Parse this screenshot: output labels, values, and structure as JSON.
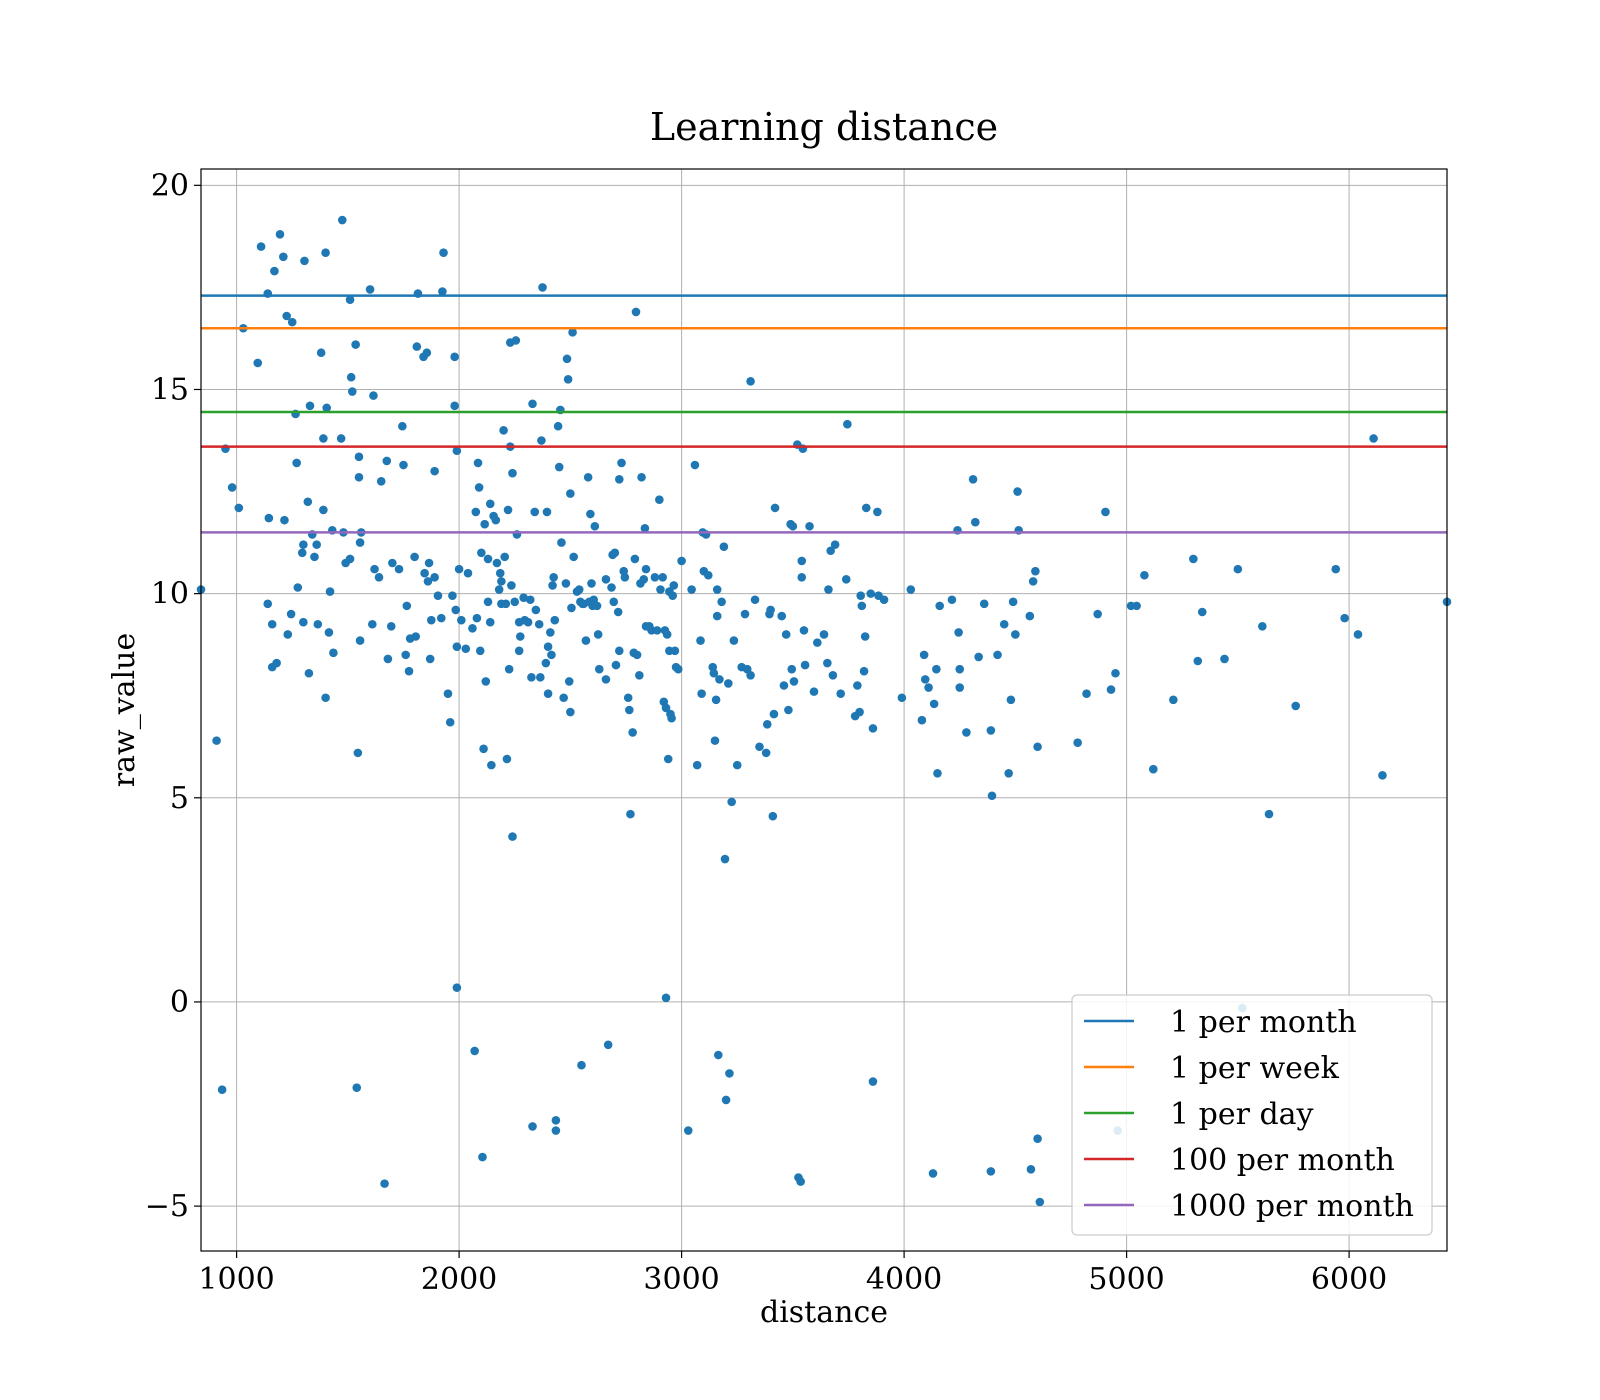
{
  "chart_data": {
    "type": "scatter",
    "title": "Learning distance",
    "xlabel": "distance",
    "ylabel": "raw_value",
    "xlim": [
      840,
      6440
    ],
    "ylim": [
      -6.1,
      20.4
    ],
    "xticks": [
      1000,
      2000,
      3000,
      4000,
      5000,
      6000
    ],
    "yticks": [
      -5,
      0,
      5,
      10,
      15,
      20
    ],
    "ytick_labels": [
      "−5",
      "0",
      "5",
      "10",
      "15",
      "20"
    ],
    "grid": true,
    "legend_position": "lower-right",
    "point_color": "#1f77b4",
    "hlines": [
      {
        "name": "1 per month",
        "y": 17.3,
        "color": "#1f77b4"
      },
      {
        "name": "1 per week",
        "y": 16.5,
        "color": "#ff7f0e"
      },
      {
        "name": "1 per day",
        "y": 14.45,
        "color": "#2ca02c"
      },
      {
        "name": "100 per month",
        "y": 13.6,
        "color": "#d62728"
      },
      {
        "name": "1000 per month",
        "y": 11.5,
        "color": "#9467bd"
      }
    ],
    "points": [
      [
        840,
        10.1
      ],
      [
        910,
        6.4
      ],
      [
        935,
        -2.15
      ],
      [
        950,
        13.55
      ],
      [
        980,
        12.6
      ],
      [
        1010,
        12.1
      ],
      [
        1030,
        16.5
      ],
      [
        1095,
        15.65
      ],
      [
        1110,
        18.5
      ],
      [
        1140,
        17.35
      ],
      [
        1145,
        11.85
      ],
      [
        1140,
        9.75
      ],
      [
        1160,
        9.25
      ],
      [
        1160,
        8.2
      ],
      [
        1170,
        17.9
      ],
      [
        1180,
        8.3
      ],
      [
        1195,
        18.8
      ],
      [
        1210,
        18.25
      ],
      [
        1215,
        11.8
      ],
      [
        1225,
        16.8
      ],
      [
        1230,
        9.0
      ],
      [
        1245,
        9.5
      ],
      [
        1250,
        16.65
      ],
      [
        1265,
        14.4
      ],
      [
        1270,
        13.2
      ],
      [
        1275,
        10.15
      ],
      [
        1295,
        11.0
      ],
      [
        1300,
        11.2
      ],
      [
        1300,
        9.3
      ],
      [
        1305,
        18.15
      ],
      [
        1320,
        12.25
      ],
      [
        1325,
        8.05
      ],
      [
        1330,
        14.6
      ],
      [
        1340,
        11.45
      ],
      [
        1350,
        10.9
      ],
      [
        1360,
        11.2
      ],
      [
        1365,
        9.25
      ],
      [
        1380,
        15.9
      ],
      [
        1390,
        12.05
      ],
      [
        1390,
        13.8
      ],
      [
        1400,
        18.35
      ],
      [
        1400,
        7.45
      ],
      [
        1405,
        14.55
      ],
      [
        1415,
        9.05
      ],
      [
        1420,
        10.05
      ],
      [
        1430,
        11.55
      ],
      [
        1435,
        8.55
      ],
      [
        1470,
        13.8
      ],
      [
        1475,
        19.15
      ],
      [
        1480,
        11.5
      ],
      [
        1490,
        10.75
      ],
      [
        1510,
        10.85
      ],
      [
        1510,
        17.2
      ],
      [
        1515,
        15.3
      ],
      [
        1520,
        14.95
      ],
      [
        1535,
        16.1
      ],
      [
        1540,
        -2.1
      ],
      [
        1545,
        6.1
      ],
      [
        1550,
        13.35
      ],
      [
        1550,
        12.85
      ],
      [
        1555,
        11.25
      ],
      [
        1555,
        8.85
      ],
      [
        1560,
        11.5
      ],
      [
        1600,
        17.45
      ],
      [
        1610,
        9.25
      ],
      [
        1615,
        14.85
      ],
      [
        1620,
        10.6
      ],
      [
        1640,
        10.4
      ],
      [
        1650,
        12.75
      ],
      [
        1665,
        -4.45
      ],
      [
        1675,
        13.25
      ],
      [
        1680,
        8.4
      ],
      [
        1695,
        9.2
      ],
      [
        1700,
        10.75
      ],
      [
        1730,
        10.6
      ],
      [
        1745,
        14.1
      ],
      [
        1750,
        13.15
      ],
      [
        1760,
        8.5
      ],
      [
        1765,
        9.7
      ],
      [
        1775,
        8.1
      ],
      [
        1780,
        8.9
      ],
      [
        1800,
        10.9
      ],
      [
        1805,
        8.95
      ],
      [
        1810,
        16.05
      ],
      [
        1815,
        17.35
      ],
      [
        1840,
        15.8
      ],
      [
        1845,
        10.5
      ],
      [
        1855,
        15.9
      ],
      [
        1860,
        10.3
      ],
      [
        1865,
        10.75
      ],
      [
        1870,
        8.4
      ],
      [
        1875,
        9.35
      ],
      [
        1890,
        13.0
      ],
      [
        1890,
        10.4
      ],
      [
        1905,
        9.95
      ],
      [
        1920,
        9.4
      ],
      [
        1925,
        17.4
      ],
      [
        1930,
        18.35
      ],
      [
        1950,
        7.55
      ],
      [
        1960,
        6.85
      ],
      [
        1970,
        9.95
      ],
      [
        1980,
        15.8
      ],
      [
        1980,
        14.6
      ],
      [
        1985,
        9.6
      ],
      [
        1990,
        13.5
      ],
      [
        1990,
        8.7
      ],
      [
        1990,
        0.35
      ],
      [
        2000,
        10.6
      ],
      [
        2010,
        9.35
      ],
      [
        2030,
        8.65
      ],
      [
        2040,
        10.5
      ],
      [
        2060,
        9.15
      ],
      [
        2070,
        -1.2
      ],
      [
        2075,
        12.0
      ],
      [
        2080,
        9.4
      ],
      [
        2085,
        13.2
      ],
      [
        2090,
        12.6
      ],
      [
        2095,
        8.6
      ],
      [
        2100,
        11.0
      ],
      [
        2105,
        -3.8
      ],
      [
        2110,
        6.2
      ],
      [
        2115,
        11.7
      ],
      [
        2120,
        7.85
      ],
      [
        2130,
        9.8
      ],
      [
        2130,
        10.85
      ],
      [
        2140,
        12.2
      ],
      [
        2140,
        9.3
      ],
      [
        2145,
        5.8
      ],
      [
        2155,
        11.9
      ],
      [
        2165,
        11.8
      ],
      [
        2170,
        10.75
      ],
      [
        2180,
        10.1
      ],
      [
        2185,
        10.5
      ],
      [
        2190,
        9.75
      ],
      [
        2190,
        10.3
      ],
      [
        2200,
        14.0
      ],
      [
        2205,
        10.9
      ],
      [
        2210,
        9.75
      ],
      [
        2215,
        5.95
      ],
      [
        2220,
        12.05
      ],
      [
        2225,
        8.15
      ],
      [
        2230,
        16.15
      ],
      [
        2230,
        13.6
      ],
      [
        2235,
        10.2
      ],
      [
        2240,
        4.05
      ],
      [
        2240,
        12.95
      ],
      [
        2250,
        9.8
      ],
      [
        2255,
        16.2
      ],
      [
        2260,
        11.45
      ],
      [
        2270,
        9.3
      ],
      [
        2270,
        8.6
      ],
      [
        2275,
        8.95
      ],
      [
        2290,
        9.9
      ],
      [
        2295,
        9.35
      ],
      [
        2310,
        9.3
      ],
      [
        2320,
        9.85
      ],
      [
        2325,
        7.95
      ],
      [
        2330,
        -3.05
      ],
      [
        2330,
        14.65
      ],
      [
        2340,
        12.0
      ],
      [
        2345,
        9.6
      ],
      [
        2360,
        9.25
      ],
      [
        2365,
        7.95
      ],
      [
        2370,
        13.75
      ],
      [
        2375,
        17.5
      ],
      [
        2390,
        8.3
      ],
      [
        2400,
        7.55
      ],
      [
        2395,
        12.0
      ],
      [
        2400,
        8.7
      ],
      [
        2410,
        9.05
      ],
      [
        2415,
        8.5
      ],
      [
        2420,
        10.2
      ],
      [
        2425,
        10.4
      ],
      [
        2430,
        9.35
      ],
      [
        2435,
        -2.9
      ],
      [
        2435,
        -3.15
      ],
      [
        2445,
        14.1
      ],
      [
        2450,
        13.1
      ],
      [
        2455,
        14.5
      ],
      [
        2460,
        11.25
      ],
      [
        2470,
        7.45
      ],
      [
        2480,
        10.25
      ],
      [
        2485,
        15.75
      ],
      [
        2490,
        15.25
      ],
      [
        2495,
        7.85
      ],
      [
        2500,
        7.1
      ],
      [
        2500,
        12.45
      ],
      [
        2505,
        9.65
      ],
      [
        2510,
        16.4
      ],
      [
        2515,
        10.9
      ],
      [
        2530,
        10.05
      ],
      [
        2540,
        10.1
      ],
      [
        2545,
        9.8
      ],
      [
        2550,
        -1.55
      ],
      [
        2555,
        9.75
      ],
      [
        2560,
        9.75
      ],
      [
        2570,
        8.85
      ],
      [
        2580,
        12.85
      ],
      [
        2585,
        9.8
      ],
      [
        2590,
        11.95
      ],
      [
        2595,
        10.25
      ],
      [
        2600,
        9.7
      ],
      [
        2605,
        9.85
      ],
      [
        2610,
        11.65
      ],
      [
        2620,
        9.7
      ],
      [
        2625,
        9.0
      ],
      [
        2630,
        8.15
      ],
      [
        2660,
        10.35
      ],
      [
        2660,
        7.9
      ],
      [
        2670,
        -1.05
      ],
      [
        2685,
        10.15
      ],
      [
        2690,
        10.95
      ],
      [
        2695,
        9.8
      ],
      [
        2700,
        11.0
      ],
      [
        2705,
        8.25
      ],
      [
        2715,
        9.55
      ],
      [
        2720,
        8.6
      ],
      [
        2720,
        12.8
      ],
      [
        2730,
        13.2
      ],
      [
        2740,
        10.55
      ],
      [
        2745,
        10.4
      ],
      [
        2760,
        7.45
      ],
      [
        2765,
        7.15
      ],
      [
        2770,
        4.6
      ],
      [
        2780,
        6.6
      ],
      [
        2785,
        8.55
      ],
      [
        2790,
        10.85
      ],
      [
        2795,
        16.9
      ],
      [
        2800,
        8.5
      ],
      [
        2810,
        8.0
      ],
      [
        2815,
        10.25
      ],
      [
        2820,
        12.85
      ],
      [
        2830,
        10.35
      ],
      [
        2835,
        11.6
      ],
      [
        2840,
        9.2
      ],
      [
        2840,
        10.6
      ],
      [
        2855,
        9.2
      ],
      [
        2865,
        9.1
      ],
      [
        2880,
        10.4
      ],
      [
        2890,
        9.1
      ],
      [
        2900,
        12.3
      ],
      [
        2905,
        10.1
      ],
      [
        2915,
        10.4
      ],
      [
        2920,
        7.35
      ],
      [
        2925,
        9.1
      ],
      [
        2930,
        0.1
      ],
      [
        2930,
        7.2
      ],
      [
        2935,
        9.0
      ],
      [
        2940,
        5.95
      ],
      [
        2945,
        8.6
      ],
      [
        2945,
        10.05
      ],
      [
        2950,
        7.05
      ],
      [
        2955,
        6.95
      ],
      [
        2960,
        9.95
      ],
      [
        2965,
        10.2
      ],
      [
        2970,
        8.6
      ],
      [
        2975,
        8.2
      ],
      [
        2985,
        8.15
      ],
      [
        3000,
        10.8
      ],
      [
        3030,
        -3.15
      ],
      [
        3045,
        10.1
      ],
      [
        3060,
        13.15
      ],
      [
        3070,
        5.8
      ],
      [
        3085,
        8.85
      ],
      [
        3090,
        7.55
      ],
      [
        3095,
        11.5
      ],
      [
        3100,
        10.55
      ],
      [
        3110,
        11.45
      ],
      [
        3120,
        10.45
      ],
      [
        3140,
        8.2
      ],
      [
        3145,
        8.05
      ],
      [
        3150,
        6.4
      ],
      [
        3155,
        7.4
      ],
      [
        3160,
        9.45
      ],
      [
        3160,
        10.1
      ],
      [
        3165,
        -1.3
      ],
      [
        3170,
        7.9
      ],
      [
        3180,
        9.8
      ],
      [
        3190,
        11.15
      ],
      [
        3195,
        3.5
      ],
      [
        3200,
        -2.4
      ],
      [
        3210,
        7.8
      ],
      [
        3215,
        -1.75
      ],
      [
        3225,
        4.9
      ],
      [
        3235,
        8.85
      ],
      [
        3250,
        5.8
      ],
      [
        3270,
        8.2
      ],
      [
        3285,
        9.5
      ],
      [
        3295,
        8.15
      ],
      [
        3310,
        8.0
      ],
      [
        3310,
        15.2
      ],
      [
        3330,
        9.85
      ],
      [
        3350,
        6.25
      ],
      [
        3380,
        6.1
      ],
      [
        3385,
        6.8
      ],
      [
        3395,
        9.5
      ],
      [
        3400,
        9.6
      ],
      [
        3410,
        4.55
      ],
      [
        3415,
        7.05
      ],
      [
        3420,
        12.1
      ],
      [
        3450,
        9.45
      ],
      [
        3460,
        7.75
      ],
      [
        3470,
        9.0
      ],
      [
        3480,
        7.15
      ],
      [
        3490,
        11.7
      ],
      [
        3495,
        8.15
      ],
      [
        3500,
        11.65
      ],
      [
        3505,
        7.85
      ],
      [
        3520,
        13.65
      ],
      [
        3525,
        -4.3
      ],
      [
        3535,
        -4.4
      ],
      [
        3540,
        10.4
      ],
      [
        3540,
        10.8
      ],
      [
        3545,
        13.55
      ],
      [
        3550,
        9.1
      ],
      [
        3555,
        8.25
      ],
      [
        3575,
        11.65
      ],
      [
        3595,
        7.6
      ],
      [
        3610,
        8.8
      ],
      [
        3640,
        9.0
      ],
      [
        3655,
        8.3
      ],
      [
        3660,
        10.1
      ],
      [
        3670,
        11.05
      ],
      [
        3680,
        8.0
      ],
      [
        3690,
        11.2
      ],
      [
        3715,
        7.55
      ],
      [
        3740,
        10.35
      ],
      [
        3745,
        14.15
      ],
      [
        3780,
        7.0
      ],
      [
        3790,
        7.75
      ],
      [
        3800,
        7.1
      ],
      [
        3805,
        9.95
      ],
      [
        3810,
        9.7
      ],
      [
        3820,
        8.1
      ],
      [
        3825,
        8.95
      ],
      [
        3830,
        12.1
      ],
      [
        3850,
        10.0
      ],
      [
        3860,
        6.7
      ],
      [
        3860,
        -1.95
      ],
      [
        3880,
        12.0
      ],
      [
        3885,
        9.95
      ],
      [
        3910,
        9.85
      ],
      [
        3990,
        7.45
      ],
      [
        4030,
        10.1
      ],
      [
        4080,
        6.9
      ],
      [
        4090,
        8.5
      ],
      [
        4095,
        7.9
      ],
      [
        4110,
        7.7
      ],
      [
        4130,
        -4.2
      ],
      [
        4135,
        7.3
      ],
      [
        4145,
        8.15
      ],
      [
        4150,
        5.6
      ],
      [
        4160,
        9.7
      ],
      [
        4215,
        9.85
      ],
      [
        4240,
        11.55
      ],
      [
        4245,
        9.05
      ],
      [
        4250,
        7.7
      ],
      [
        4250,
        8.15
      ],
      [
        4280,
        6.6
      ],
      [
        4310,
        12.8
      ],
      [
        4320,
        11.75
      ],
      [
        4335,
        8.45
      ],
      [
        4360,
        9.75
      ],
      [
        4390,
        6.65
      ],
      [
        4390,
        -4.15
      ],
      [
        4395,
        5.05
      ],
      [
        4420,
        8.5
      ],
      [
        4450,
        9.25
      ],
      [
        4470,
        5.6
      ],
      [
        4480,
        7.4
      ],
      [
        4490,
        9.8
      ],
      [
        4500,
        9.0
      ],
      [
        4510,
        12.5
      ],
      [
        4515,
        11.55
      ],
      [
        4565,
        9.45
      ],
      [
        4570,
        -4.1
      ],
      [
        4580,
        10.3
      ],
      [
        4590,
        10.55
      ],
      [
        4600,
        6.25
      ],
      [
        4600,
        -3.35
      ],
      [
        4610,
        -4.9
      ],
      [
        4780,
        6.35
      ],
      [
        4820,
        7.55
      ],
      [
        4870,
        9.5
      ],
      [
        4905,
        12.0
      ],
      [
        4930,
        7.65
      ],
      [
        4950,
        8.05
      ],
      [
        4960,
        -3.15
      ],
      [
        5020,
        9.7
      ],
      [
        5045,
        9.7
      ],
      [
        5080,
        10.45
      ],
      [
        5120,
        5.7
      ],
      [
        5210,
        7.4
      ],
      [
        5300,
        10.85
      ],
      [
        5320,
        8.35
      ],
      [
        5340,
        9.55
      ],
      [
        5440,
        8.4
      ],
      [
        5500,
        10.6
      ],
      [
        5520,
        -0.15
      ],
      [
        5610,
        9.2
      ],
      [
        5640,
        4.6
      ],
      [
        5760,
        7.25
      ],
      [
        5940,
        10.6
      ],
      [
        5980,
        9.4
      ],
      [
        6040,
        9.0
      ],
      [
        6110,
        13.8
      ],
      [
        6150,
        5.55
      ],
      [
        6440,
        9.8
      ]
    ]
  }
}
